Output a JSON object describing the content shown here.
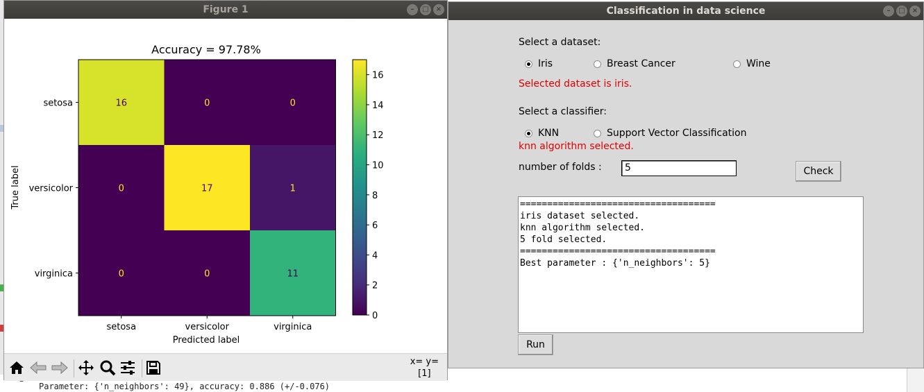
{
  "terminal": {
    "line": "Parameter: {'n_neighbors': 49}, accuracy: 0.886 (+/-0.076)",
    "dash": "–"
  },
  "figure": {
    "window_title": "Figure 1",
    "coords_text": "x= y=",
    "coords_value": "[1]",
    "toolbar": [
      "home-icon",
      "back-arrow-icon",
      "forward-arrow-icon",
      "pan-icon",
      "zoom-icon",
      "configure-icon",
      "save-icon"
    ]
  },
  "chart_data": {
    "type": "heatmap",
    "title": "Accuracy = 97.78%",
    "xlabel": "Predicted label",
    "ylabel": "True label",
    "x_categories": [
      "setosa",
      "versicolor",
      "virginica"
    ],
    "y_categories": [
      "setosa",
      "versicolor",
      "virginica"
    ],
    "values": [
      [
        16,
        0,
        0
      ],
      [
        0,
        17,
        1
      ],
      [
        0,
        0,
        11
      ]
    ],
    "colormap": "viridis",
    "colorbar": {
      "min": 0,
      "max": 17,
      "ticks": [
        0,
        2,
        4,
        6,
        8,
        10,
        12,
        14,
        16
      ]
    }
  },
  "classifier_window": {
    "title": "Classification in data science",
    "dataset_prompt": "Select a dataset:",
    "datasets": [
      {
        "label": "Iris",
        "selected": true
      },
      {
        "label": "Breast Cancer",
        "selected": false
      },
      {
        "label": "Wine",
        "selected": false
      }
    ],
    "dataset_status": "Selected dataset is iris.",
    "classifier_prompt": "Select a classifier:",
    "classifiers": [
      {
        "label": "KNN",
        "selected": true
      },
      {
        "label": "Support Vector Classification",
        "selected": false
      }
    ],
    "classifier_status": "knn algorithm selected.",
    "folds_label": "number of folds :",
    "folds_value": "5",
    "check_button": "Check",
    "output_text": "====================================\niris dataset selected.\nknn algorithm selected.\n5 fold selected.\n====================================\nBest parameter : {'n_neighbors': 5}",
    "run_button": "Run",
    "status_color": "#e00000"
  }
}
